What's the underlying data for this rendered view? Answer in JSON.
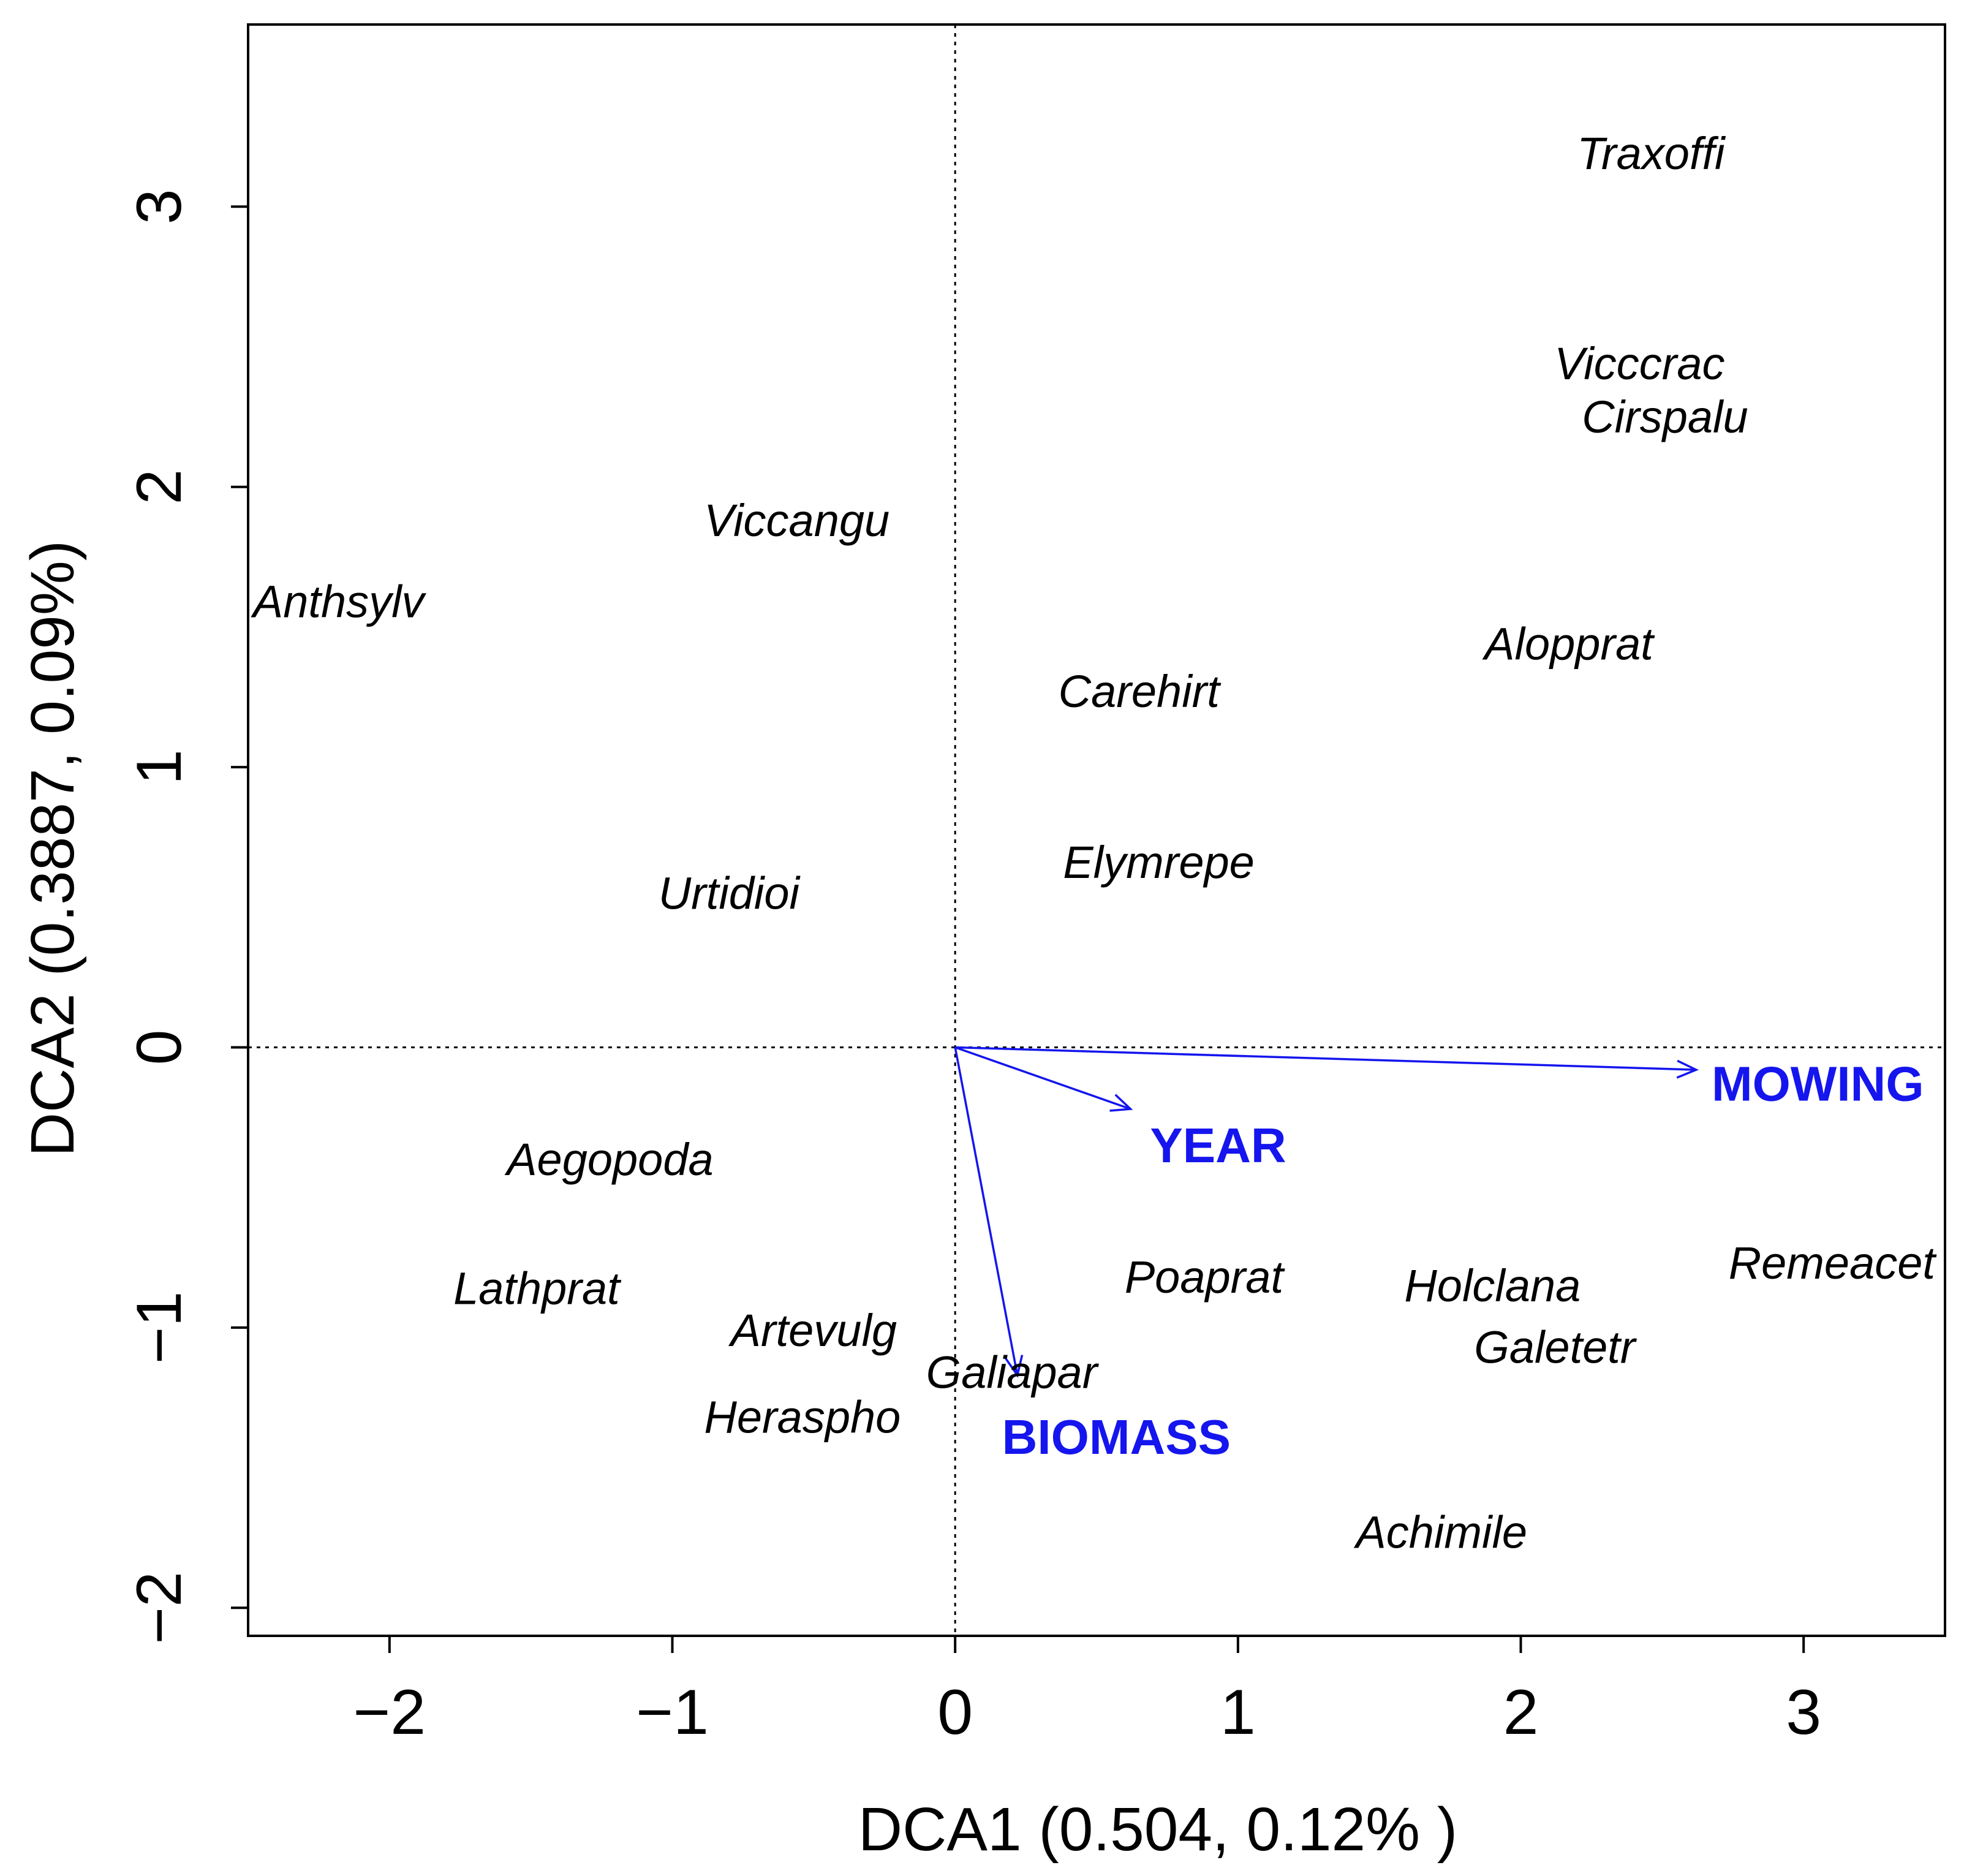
{
  "chart_data": {
    "type": "scatter",
    "title": "",
    "xlabel": "DCA1 (0.504, 0.12% )",
    "ylabel": "DCA2  (0.3887, 0.09%)",
    "xlim": [
      -2.5,
      3.5
    ],
    "ylim": [
      -2.1,
      3.65
    ],
    "xticks": [
      -2,
      -1,
      0,
      1,
      2,
      3
    ],
    "yticks": [
      -2,
      -1,
      0,
      1,
      2,
      3
    ],
    "xtick_labels": [
      "−2",
      "−1",
      "0",
      "1",
      "2",
      "3"
    ],
    "ytick_labels": [
      "−2",
      "−1",
      "0",
      "1",
      "2",
      "3"
    ],
    "reference_lines": {
      "x": 0,
      "y": 0,
      "style": "dotted"
    },
    "species": [
      {
        "name": "Traxoffi",
        "x": 2.46,
        "y": 3.19
      },
      {
        "name": "Vicccrac",
        "x": 2.42,
        "y": 2.44
      },
      {
        "name": "Cirspalu",
        "x": 2.51,
        "y": 2.25
      },
      {
        "name": "Viccangu",
        "x": -0.56,
        "y": 1.88
      },
      {
        "name": "Anthsylv",
        "x": -2.18,
        "y": 1.59
      },
      {
        "name": "Alopprat",
        "x": 2.17,
        "y": 1.44
      },
      {
        "name": "Carehirt",
        "x": 0.65,
        "y": 1.27
      },
      {
        "name": "Elymrepe",
        "x": 0.72,
        "y": 0.66
      },
      {
        "name": "Urtidioi",
        "x": -0.8,
        "y": 0.55
      },
      {
        "name": "Aegopoda",
        "x": -1.22,
        "y": -0.4
      },
      {
        "name": "Lathprat",
        "x": -1.48,
        "y": -0.86
      },
      {
        "name": "Poaprat",
        "x": 0.88,
        "y": -0.82
      },
      {
        "name": "Holclana",
        "x": 1.9,
        "y": -0.85
      },
      {
        "name": "Remeacet",
        "x": 3.1,
        "y": -0.77
      },
      {
        "name": "Artevulg",
        "x": -0.5,
        "y": -1.01
      },
      {
        "name": "Galetetr",
        "x": 2.12,
        "y": -1.07
      },
      {
        "name": "Galiapar",
        "x": 0.2,
        "y": -1.16
      },
      {
        "name": "Heraspho",
        "x": -0.54,
        "y": -1.32
      },
      {
        "name": "Achimile",
        "x": 1.72,
        "y": -1.73
      }
    ],
    "env_vectors": [
      {
        "name": "MOWING",
        "x": 2.62,
        "y": -0.08,
        "label_x": 3.05,
        "label_y": -0.13
      },
      {
        "name": "YEAR",
        "x": 0.62,
        "y": -0.22,
        "label_x": 0.93,
        "label_y": -0.35
      },
      {
        "name": "BIOMASS",
        "x": 0.22,
        "y": -1.17,
        "label_x": 0.57,
        "label_y": -1.39
      }
    ],
    "colors": {
      "env": "#1515ee",
      "species": "#000000",
      "axis": "#000000"
    }
  }
}
